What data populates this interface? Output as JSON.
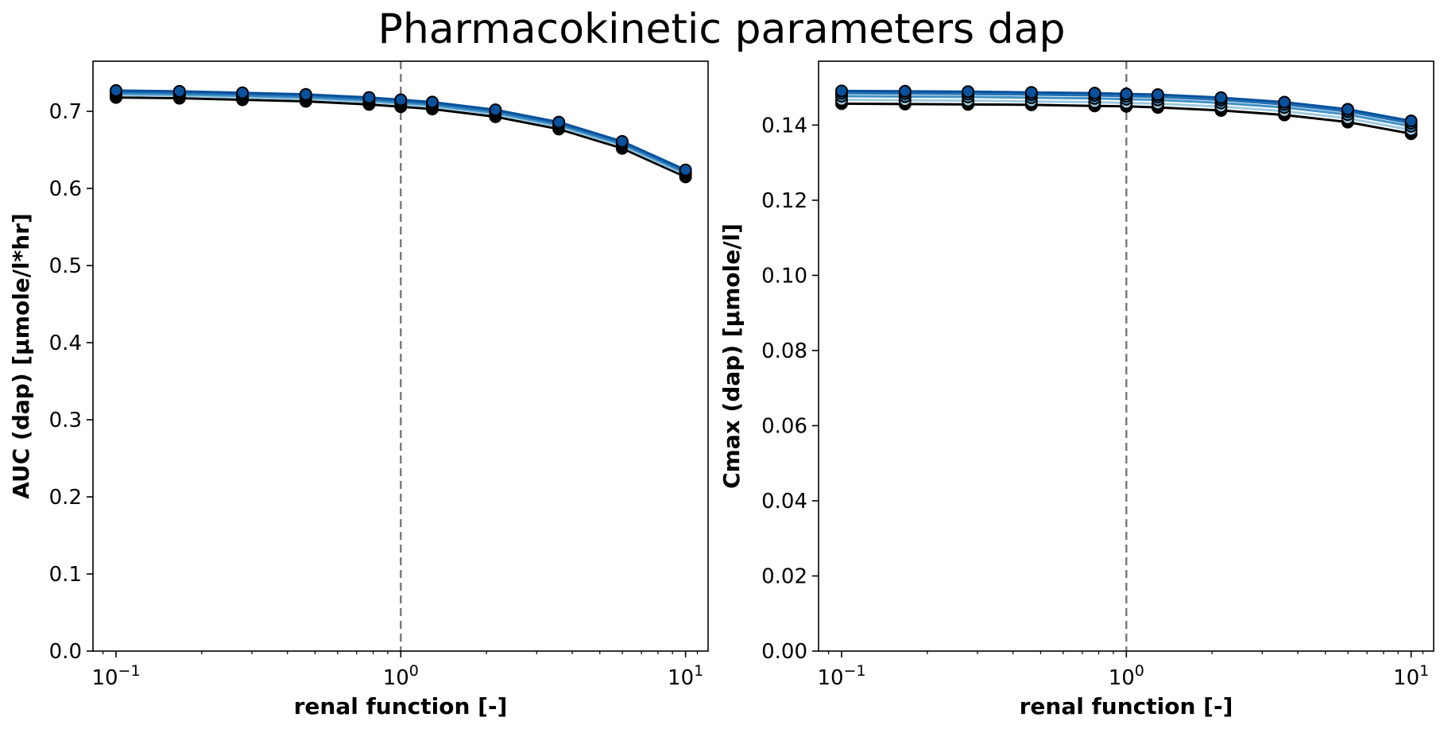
{
  "figure": {
    "title": "Pharmacokinetic parameters dap"
  },
  "colors": {
    "reference_line": "#777777",
    "marker_edge": "#000000",
    "series": [
      "#000000",
      "#9ecae1",
      "#4292c6",
      "#2171b5",
      "#08519c"
    ]
  },
  "chart_data": [
    {
      "type": "line",
      "xscale": "log",
      "xlim": [
        0.083,
        12.0
      ],
      "ylim": [
        0.0,
        0.765
      ],
      "xlabel": "renal function [-]",
      "ylabel": "AUC (dap) [µmole/l*hr]",
      "x_ticks": [
        {
          "value": 0.1,
          "base": "10",
          "exp": "−1"
        },
        {
          "value": 1,
          "base": "10",
          "exp": "0"
        },
        {
          "value": 10,
          "base": "10",
          "exp": "1"
        }
      ],
      "y_ticks": [
        "0.0",
        "0.1",
        "0.2",
        "0.3",
        "0.4",
        "0.5",
        "0.6",
        "0.7"
      ],
      "y_tick_values": [
        0.0,
        0.1,
        0.2,
        0.3,
        0.4,
        0.5,
        0.6,
        0.7
      ],
      "reference_x": 1,
      "grid": false,
      "x": [
        0.1,
        0.167,
        0.278,
        0.464,
        0.774,
        1.0,
        1.29,
        2.15,
        3.59,
        5.99,
        10.0
      ],
      "series": [
        {
          "values": [
            0.718,
            0.717,
            0.715,
            0.713,
            0.709,
            0.706,
            0.703,
            0.693,
            0.677,
            0.652,
            0.615
          ]
        },
        {
          "values": [
            0.721,
            0.72,
            0.718,
            0.716,
            0.712,
            0.709,
            0.706,
            0.696,
            0.68,
            0.655,
            0.618
          ]
        },
        {
          "values": [
            0.723,
            0.722,
            0.72,
            0.718,
            0.714,
            0.711,
            0.708,
            0.698,
            0.682,
            0.657,
            0.62
          ]
        },
        {
          "values": [
            0.725,
            0.724,
            0.722,
            0.72,
            0.716,
            0.713,
            0.71,
            0.7,
            0.684,
            0.659,
            0.622
          ]
        },
        {
          "values": [
            0.727,
            0.726,
            0.724,
            0.722,
            0.718,
            0.715,
            0.712,
            0.702,
            0.686,
            0.661,
            0.624
          ]
        }
      ]
    },
    {
      "type": "line",
      "xscale": "log",
      "xlim": [
        0.083,
        12.0
      ],
      "ylim": [
        0.0,
        0.157
      ],
      "xlabel": "renal function [-]",
      "ylabel": "Cmax (dap) [µmole/l]",
      "x_ticks": [
        {
          "value": 0.1,
          "base": "10",
          "exp": "−1"
        },
        {
          "value": 1,
          "base": "10",
          "exp": "0"
        },
        {
          "value": 10,
          "base": "10",
          "exp": "1"
        }
      ],
      "y_ticks": [
        "0.00",
        "0.02",
        "0.04",
        "0.06",
        "0.08",
        "0.10",
        "0.12",
        "0.14"
      ],
      "y_tick_values": [
        0.0,
        0.02,
        0.04,
        0.06,
        0.08,
        0.1,
        0.12,
        0.14
      ],
      "reference_x": 1,
      "grid": false,
      "x": [
        0.1,
        0.167,
        0.278,
        0.464,
        0.774,
        1.0,
        1.29,
        2.15,
        3.59,
        5.99,
        10.0
      ],
      "series": [
        {
          "values": [
            0.1457,
            0.1456,
            0.1455,
            0.1454,
            0.1451,
            0.145,
            0.1447,
            0.1439,
            0.1427,
            0.1408,
            0.1377
          ]
        },
        {
          "values": [
            0.1467,
            0.1466,
            0.1465,
            0.1463,
            0.1461,
            0.1459,
            0.1457,
            0.1449,
            0.1437,
            0.1418,
            0.1387
          ]
        },
        {
          "values": [
            0.1477,
            0.1476,
            0.1475,
            0.1473,
            0.1471,
            0.1469,
            0.1467,
            0.1459,
            0.1447,
            0.1428,
            0.1397
          ]
        },
        {
          "values": [
            0.1485,
            0.1484,
            0.1483,
            0.1481,
            0.1479,
            0.1477,
            0.1475,
            0.1467,
            0.1455,
            0.1436,
            0.1405
          ]
        },
        {
          "values": [
            0.1491,
            0.149,
            0.1489,
            0.1487,
            0.1485,
            0.1483,
            0.1481,
            0.1473,
            0.1461,
            0.1442,
            0.1411
          ]
        }
      ]
    }
  ]
}
